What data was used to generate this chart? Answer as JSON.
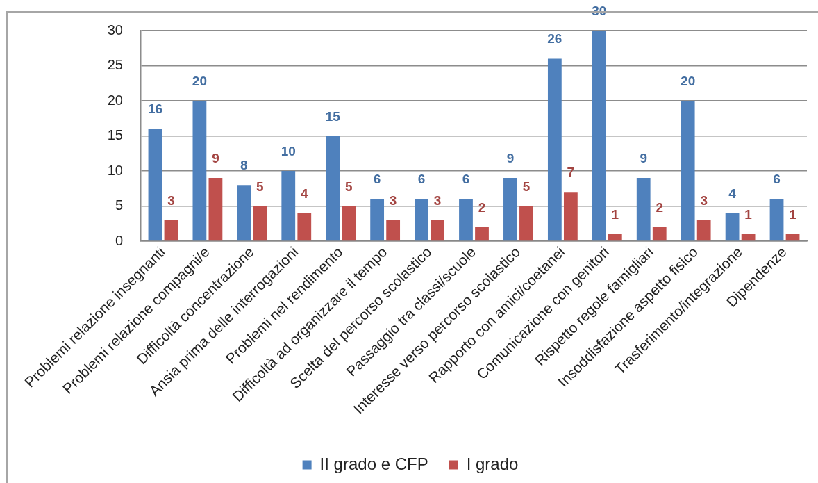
{
  "chart_data": {
    "type": "bar",
    "categories": [
      "Problemi relazione insegnanti",
      "Problemi relazione compagni/e",
      "Difficoltà concentrazione",
      "Ansia prima delle interrogazioni",
      "Problemi nel rendimento",
      "Difficoltà ad organizzare il tempo",
      "Scelta del percorso scolastico",
      "Passaggio tra classi/scuole",
      "Interesse verso percorso scolastico",
      "Rapporto con amici/coetanei",
      "Comunicazione con genitori",
      "Rispetto regole famigliari",
      "Insoddisfazione aspetto fisico",
      "Trasferimento/integrazione",
      "Dipendenze"
    ],
    "series": [
      {
        "name": "II grado e CFP",
        "color": "#4f81bd",
        "values": [
          16,
          20,
          8,
          10,
          15,
          6,
          6,
          6,
          9,
          26,
          30,
          9,
          20,
          4,
          6
        ]
      },
      {
        "name": "I grado",
        "color": "#c0504d",
        "values": [
          3,
          9,
          5,
          4,
          5,
          3,
          3,
          2,
          5,
          7,
          1,
          2,
          3,
          1,
          1
        ]
      }
    ],
    "ylim": [
      0,
      30
    ],
    "yticks": [
      0,
      5,
      10,
      15,
      20,
      25,
      30
    ],
    "grid": "y",
    "legend": "bottom",
    "data_labels": true
  }
}
